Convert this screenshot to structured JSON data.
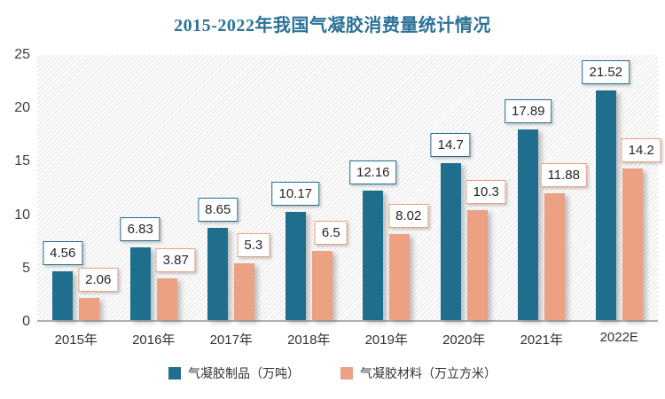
{
  "chart_data": {
    "type": "bar",
    "title": "2015-2022年我国气凝胶消费量统计情况",
    "categories": [
      "2015年",
      "2016年",
      "2017年",
      "2018年",
      "2019年",
      "2020年",
      "2021年",
      "2022E"
    ],
    "series": [
      {
        "name": "气凝胶制品（万吨）",
        "color": "#1f6e8e",
        "values": [
          4.56,
          6.83,
          8.65,
          10.17,
          12.16,
          14.7,
          17.89,
          21.52
        ]
      },
      {
        "name": "气凝胶材料（万立方米）",
        "color": "#eca183",
        "values": [
          2.06,
          3.87,
          5.3,
          6.5,
          8.02,
          10.3,
          11.88,
          14.2
        ]
      }
    ],
    "ylim": [
      0,
      25
    ],
    "yticks": [
      0,
      5,
      10,
      15,
      20,
      25
    ],
    "grid": "none",
    "plot_background": "diagonal-hatch",
    "legend_position": "bottom",
    "data_labels": "boxed, white fill, series-colored border",
    "colors": {
      "title": "#2b7296",
      "axis_line": "#adadad",
      "tick_text": "#3f3f3f",
      "label_text": "#262626"
    }
  }
}
